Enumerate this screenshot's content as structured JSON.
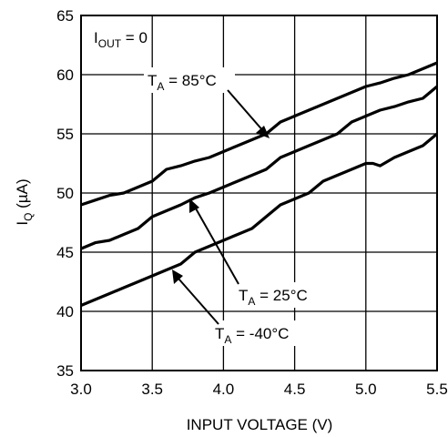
{
  "chart_data": {
    "type": "line",
    "xlabel": "INPUT VOLTAGE (V)",
    "ylabel": {
      "main": "I",
      "sub": "Q",
      "unit": " (µA)"
    },
    "xlim": [
      3.0,
      5.5
    ],
    "ylim": [
      35,
      65
    ],
    "xticks": [
      "3.0",
      "3.5",
      "4.0",
      "4.5",
      "5.0",
      "5.5"
    ],
    "yticks": [
      "35",
      "40",
      "45",
      "50",
      "55",
      "60",
      "65"
    ],
    "grid": true,
    "condition": {
      "main": "I",
      "sub": "OUT",
      "rest": " = 0"
    },
    "series": [
      {
        "label": {
          "main": "T",
          "sub": "A",
          "rest": " = 85°C"
        },
        "x": [
          3.0,
          3.1,
          3.2,
          3.3,
          3.4,
          3.5,
          3.6,
          3.7,
          3.8,
          3.9,
          4.0,
          4.1,
          4.2,
          4.3,
          4.4,
          4.5,
          4.6,
          4.7,
          4.8,
          4.9,
          5.0,
          5.1,
          5.2,
          5.3,
          5.4,
          5.5
        ],
        "values": [
          49.0,
          49.4,
          49.8,
          50.0,
          50.5,
          51.0,
          52.0,
          52.3,
          52.7,
          53.0,
          53.5,
          54.0,
          54.5,
          55.0,
          56.0,
          56.5,
          57.0,
          57.5,
          58.0,
          58.5,
          59.0,
          59.3,
          59.7,
          60.0,
          60.5,
          61.0
        ]
      },
      {
        "label": {
          "main": "T",
          "sub": "A",
          "rest": " = 25°C"
        },
        "x": [
          3.0,
          3.1,
          3.2,
          3.3,
          3.4,
          3.5,
          3.6,
          3.7,
          3.8,
          3.9,
          4.0,
          4.1,
          4.2,
          4.3,
          4.4,
          4.5,
          4.6,
          4.7,
          4.8,
          4.9,
          5.0,
          5.1,
          5.2,
          5.3,
          5.4,
          5.5
        ],
        "values": [
          45.3,
          45.8,
          46.0,
          46.5,
          47.0,
          48.0,
          48.5,
          49.0,
          49.6,
          50.0,
          50.5,
          51.0,
          51.5,
          52.0,
          53.0,
          53.5,
          54.0,
          54.5,
          55.0,
          56.0,
          56.5,
          57.0,
          57.3,
          57.7,
          58.0,
          59.0
        ]
      },
      {
        "label": {
          "main": "T",
          "sub": "A",
          "rest": " = -40°C"
        },
        "x": [
          3.0,
          3.1,
          3.2,
          3.3,
          3.4,
          3.5,
          3.6,
          3.7,
          3.8,
          3.9,
          4.0,
          4.1,
          4.2,
          4.3,
          4.4,
          4.5,
          4.6,
          4.7,
          4.8,
          4.9,
          5.0,
          5.05,
          5.1,
          5.2,
          5.3,
          5.4,
          5.5
        ],
        "values": [
          40.5,
          41.0,
          41.5,
          42.0,
          42.5,
          43.0,
          43.5,
          44.0,
          45.0,
          45.5,
          46.0,
          46.5,
          47.0,
          48.0,
          49.0,
          49.5,
          50.0,
          51.0,
          51.5,
          52.0,
          52.5,
          52.5,
          52.3,
          53.0,
          53.5,
          54.0,
          55.0
        ]
      }
    ]
  }
}
